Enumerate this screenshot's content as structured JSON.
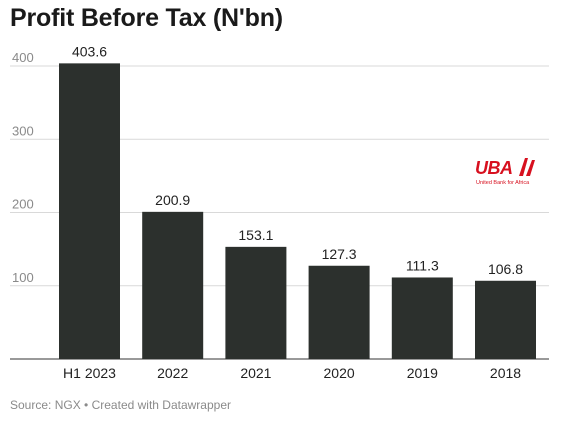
{
  "title": "Profit Before Tax (N'bn)",
  "footer": {
    "source": "Source: NGX",
    "separator": "•",
    "credit": "Created with Datawrapper"
  },
  "logo": {
    "name": "UBA",
    "tagline": "United Bank for Africa",
    "color": "#d7101f"
  },
  "colors": {
    "bar": "#2c302d",
    "grid": "#d9d9d9",
    "axis_text": "#8a8a8a",
    "label_text": "#222222"
  },
  "chart_data": {
    "type": "bar",
    "title": "Profit Before Tax (N'bn)",
    "xlabel": "",
    "ylabel": "",
    "categories": [
      "H1 2023",
      "2022",
      "2021",
      "2020",
      "2019",
      "2018"
    ],
    "values": [
      403.6,
      200.9,
      153.1,
      127.3,
      111.3,
      106.8
    ],
    "data_labels": [
      "403.6",
      "200.9",
      "153.1",
      "127.3",
      "111.3",
      "106.8"
    ],
    "yticks": [
      100,
      200,
      300,
      400
    ],
    "ylim": [
      0,
      410
    ],
    "grid": true,
    "legend": "none"
  }
}
